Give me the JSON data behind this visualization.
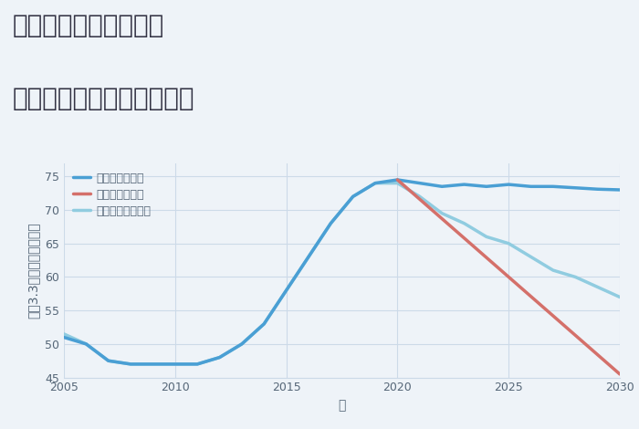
{
  "title_line1": "福岡県太宰府市宰都の",
  "title_line2": "中古マンションの価格推移",
  "xlabel": "年",
  "ylabel": "平（3.3㎡）単価（万円）",
  "background_color": "#eef3f8",
  "plot_bg_color": "#eef3f8",
  "good_scenario": {
    "label": "グッドシナリオ",
    "color": "#4a9fd4",
    "linewidth": 2.5,
    "years": [
      2005,
      2006,
      2007,
      2008,
      2009,
      2010,
      2011,
      2012,
      2013,
      2014,
      2015,
      2016,
      2017,
      2018,
      2019,
      2020,
      2021,
      2022,
      2023,
      2024,
      2025,
      2026,
      2027,
      2028,
      2029,
      2030
    ],
    "values": [
      51,
      50,
      47.5,
      47,
      47,
      47,
      47,
      48,
      50,
      53,
      58,
      63,
      68,
      72,
      74,
      74.5,
      74,
      73.5,
      73.8,
      73.5,
      73.8,
      73.5,
      73.5,
      73.3,
      73.1,
      73.0
    ]
  },
  "bad_scenario": {
    "label": "バッドシナリオ",
    "color": "#d4706a",
    "linewidth": 2.5,
    "years": [
      2020,
      2030
    ],
    "values": [
      74.5,
      45.5
    ]
  },
  "normal_scenario": {
    "label": "ノーマルシナリオ",
    "color": "#90cce0",
    "linewidth": 2.5,
    "years": [
      2005,
      2006,
      2007,
      2008,
      2009,
      2010,
      2011,
      2012,
      2013,
      2014,
      2015,
      2016,
      2017,
      2018,
      2019,
      2020,
      2021,
      2022,
      2023,
      2024,
      2025,
      2026,
      2027,
      2028,
      2029,
      2030
    ],
    "values": [
      51.5,
      50,
      47.5,
      47,
      47,
      47,
      47,
      48,
      50,
      53,
      58,
      63,
      68,
      72,
      74,
      74,
      72,
      69.5,
      68,
      66,
      65,
      63,
      61,
      60,
      58.5,
      57
    ]
  },
  "xlim": [
    2005,
    2030
  ],
  "ylim": [
    45,
    77
  ],
  "yticks": [
    45,
    50,
    55,
    60,
    65,
    70,
    75
  ],
  "xticks": [
    2005,
    2010,
    2015,
    2020,
    2025,
    2030
  ],
  "grid_color": "#ccdae8",
  "title_color": "#333344",
  "axis_color": "#556677",
  "legend_fontsize": 9,
  "title_fontsize": 20,
  "axis_label_fontsize": 10
}
